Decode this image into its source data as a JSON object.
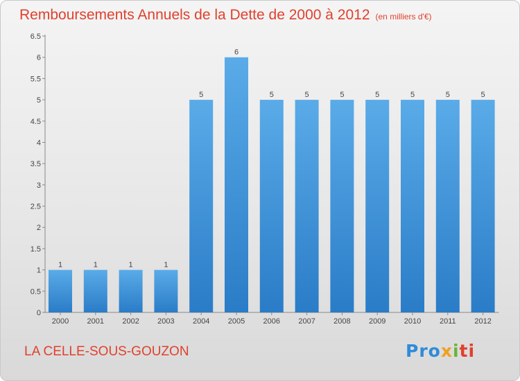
{
  "chart_data": {
    "type": "bar",
    "title": "Remboursements Annuels de la Dette de 2000 à 2012",
    "subtitle": "(en milliers d'€)",
    "categories": [
      "2000",
      "2001",
      "2002",
      "2003",
      "2004",
      "2005",
      "2006",
      "2007",
      "2008",
      "2009",
      "2010",
      "2011",
      "2012"
    ],
    "values": [
      1,
      1,
      1,
      1,
      5,
      6,
      5,
      5,
      5,
      5,
      5,
      5,
      5
    ],
    "data_labels": [
      "1",
      "1",
      "1",
      "1",
      "5",
      "6",
      "5",
      "5",
      "5",
      "5",
      "5",
      "5",
      "5"
    ],
    "ylim": [
      0,
      6.5
    ],
    "yticks": [
      "0",
      "0.5",
      "1",
      "1.5",
      "2",
      "2.5",
      "3",
      "3.5",
      "4",
      "4.5",
      "5",
      "5.5",
      "6",
      "6.5"
    ],
    "xlabel": "",
    "ylabel": "",
    "grid": false,
    "bar_color": "#2e86d4",
    "bar_color_light": "#5aabe8",
    "title_color": "#e0402d"
  },
  "footer": {
    "commune": "LA CELLE-SOUS-GOUZON",
    "logo": {
      "text": "Proxiti",
      "parts": [
        "Pro",
        "x",
        "i",
        "ti"
      ]
    }
  }
}
